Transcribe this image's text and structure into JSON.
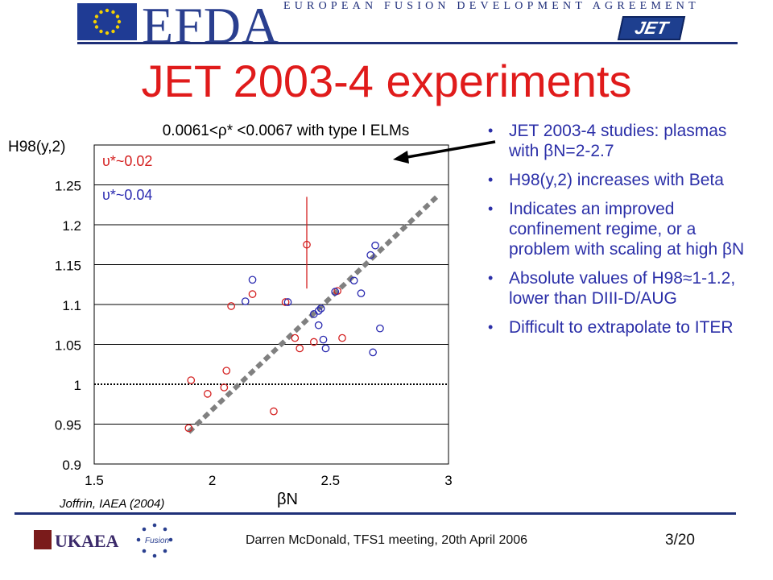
{
  "header": {
    "logo_text": "EFDA",
    "agreement_text": "EUROPEAN FUSION DEVELOPMENT AGREEMENT",
    "jet_logo_text": "JET"
  },
  "slide": {
    "title": "JET 2003-4 experiments",
    "bullets": [
      "JET 2003-4 studies: plasmas with βN=2-2.7",
      "H98(y,2) increases with Beta",
      "Indicates an improved confinement regime, or a problem with scaling at high βN",
      "Absolute values of H98≈1-1.2, lower than DIII-D/AUG",
      "Difficult to extrapolate to ITER"
    ]
  },
  "footer": {
    "text": "Darren McDonald, TFS1 meeting, 20th April 2006",
    "page": "3/20",
    "ukaea_logo_text": "UKAEA",
    "fusion_logo_text": "Fusion"
  },
  "chart_data": {
    "type": "scatter",
    "title": "0.0061<ρ* <0.0067 with type I ELMs",
    "xlabel": "βN",
    "ylabel": "H98(y,2)",
    "xlim": [
      1.5,
      3
    ],
    "ylim": [
      0.9,
      1.3
    ],
    "xticks": [
      "1.5",
      "2",
      "2.5",
      "3"
    ],
    "yticks": [
      "0.9",
      "0.95",
      "1",
      "1.05",
      "1.1",
      "1.15",
      "1.2",
      "1.25"
    ],
    "grid": "horizontal",
    "legend_position": "top-left",
    "credit": "Joffrin, IAEA (2004)",
    "reference_line_y": 1.0,
    "trend_line": {
      "x": [
        1.9,
        2.95
      ],
      "y": [
        0.94,
        1.235
      ]
    },
    "error_bar": {
      "x": 2.4,
      "y_low": 1.12,
      "y_high": 1.235
    },
    "series": [
      {
        "name": "υ*~0.02",
        "color": "#d42020",
        "points": [
          [
            1.9,
            0.945
          ],
          [
            1.91,
            1.005
          ],
          [
            1.98,
            0.988
          ],
          [
            2.05,
            0.996
          ],
          [
            2.06,
            1.017
          ],
          [
            2.08,
            1.098
          ],
          [
            2.17,
            1.113
          ],
          [
            2.26,
            0.966
          ],
          [
            2.31,
            1.103
          ],
          [
            2.35,
            1.058
          ],
          [
            2.37,
            1.045
          ],
          [
            2.4,
            1.175
          ],
          [
            2.43,
            1.053
          ],
          [
            2.53,
            1.117
          ],
          [
            2.55,
            1.058
          ]
        ]
      },
      {
        "name": "υ*~0.04",
        "color": "#2a2ab0",
        "points": [
          [
            2.14,
            1.104
          ],
          [
            2.17,
            1.131
          ],
          [
            2.32,
            1.103
          ],
          [
            2.43,
            1.088
          ],
          [
            2.45,
            1.092
          ],
          [
            2.46,
            1.095
          ],
          [
            2.45,
            1.074
          ],
          [
            2.47,
            1.056
          ],
          [
            2.48,
            1.045
          ],
          [
            2.52,
            1.116
          ],
          [
            2.6,
            1.13
          ],
          [
            2.63,
            1.114
          ],
          [
            2.67,
            1.162
          ],
          [
            2.68,
            1.04
          ],
          [
            2.69,
            1.174
          ],
          [
            2.71,
            1.07
          ]
        ]
      }
    ]
  }
}
